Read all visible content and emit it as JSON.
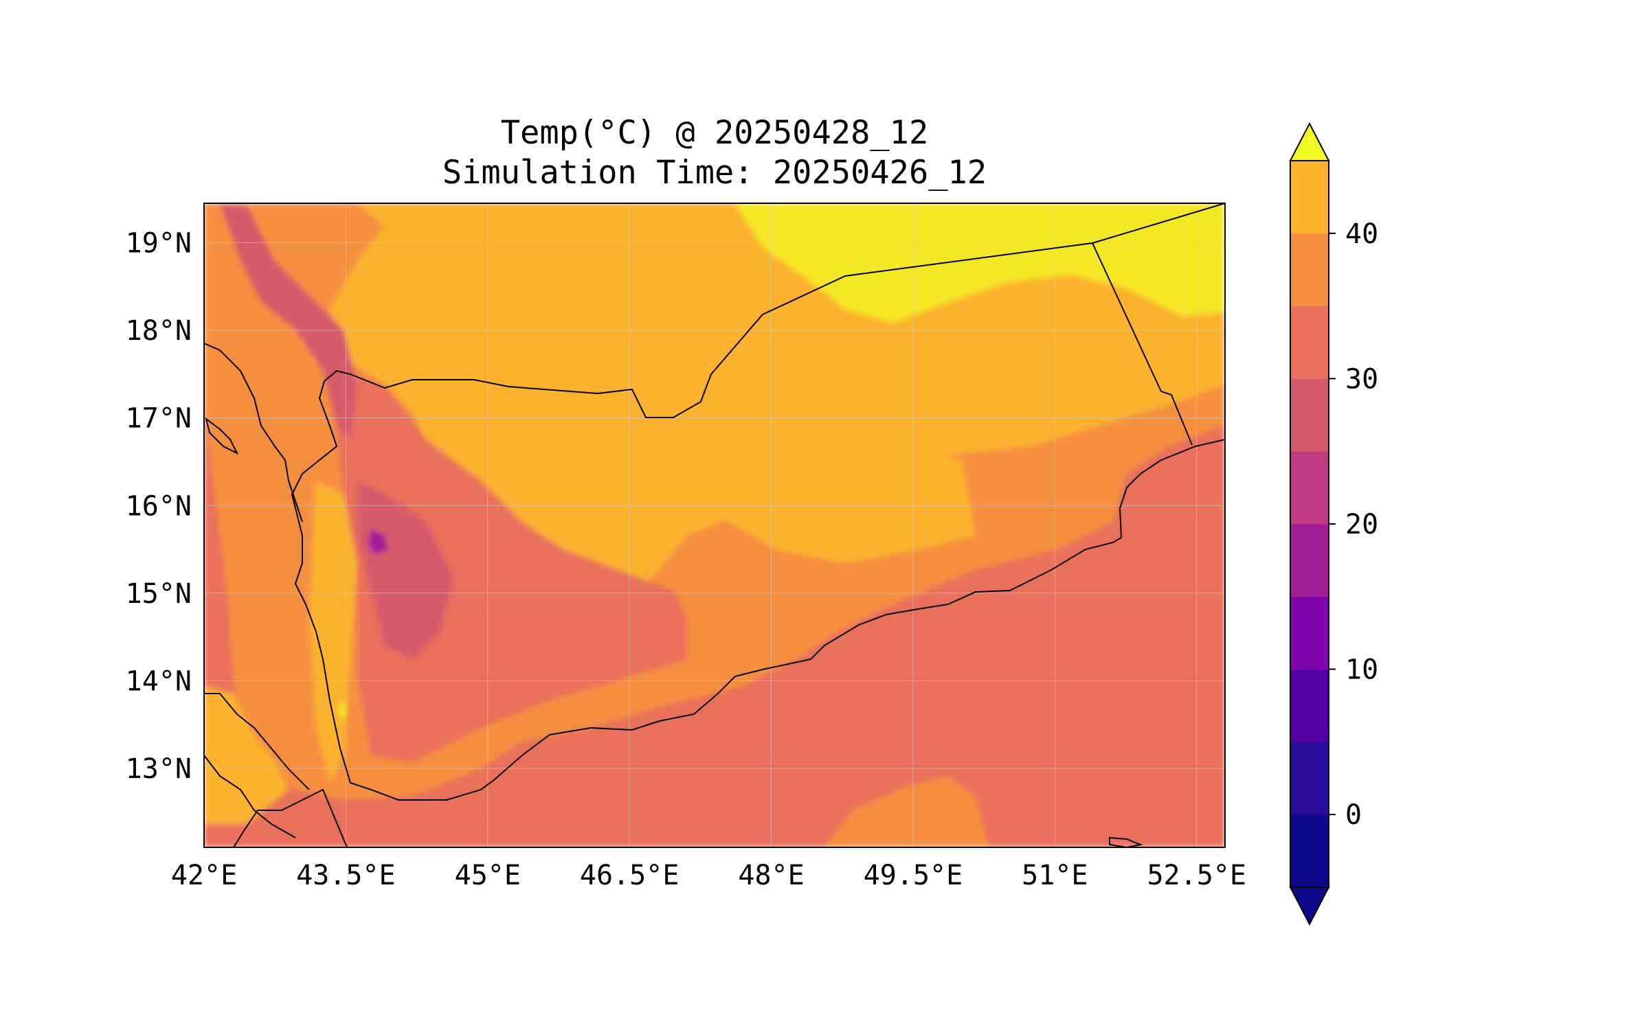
{
  "title": {
    "line1": "Temp(°C) @ 20250428_12",
    "line2": "Simulation Time: 20250426_12"
  },
  "map": {
    "lon_range": [
      42.0,
      52.8
    ],
    "lat_range": [
      12.1,
      19.45
    ],
    "lon_ticks": [
      {
        "value": 42.0,
        "label": "42°E"
      },
      {
        "value": 43.5,
        "label": "43.5°E"
      },
      {
        "value": 45.0,
        "label": "45°E"
      },
      {
        "value": 46.5,
        "label": "46.5°E"
      },
      {
        "value": 48.0,
        "label": "48°E"
      },
      {
        "value": 49.5,
        "label": "49.5°E"
      },
      {
        "value": 51.0,
        "label": "51°E"
      },
      {
        "value": 52.5,
        "label": "52.5°E"
      }
    ],
    "lat_ticks": [
      {
        "value": 19,
        "label": "19°N"
      },
      {
        "value": 18,
        "label": "18°N"
      },
      {
        "value": 17,
        "label": "17°N"
      },
      {
        "value": 16,
        "label": "16°N"
      },
      {
        "value": 15,
        "label": "15°N"
      },
      {
        "value": 14,
        "label": "14°N"
      },
      {
        "value": 13,
        "label": "13°N"
      }
    ],
    "grid": true
  },
  "colorbar": {
    "levels": [
      -5,
      0,
      5,
      10,
      15,
      20,
      25,
      30,
      35,
      40,
      45
    ],
    "colors": [
      "#0d0887",
      "#280b98",
      "#5302a3",
      "#7e03a8",
      "#a21d9a",
      "#c13b82",
      "#d55a6b",
      "#e9705a",
      "#f48f3f",
      "#fcb22d",
      "#f4e826"
    ],
    "under_color": "#0d0887",
    "over_color": "#f0f921",
    "extend": "both",
    "ticks": [
      {
        "value": 0,
        "label": "0"
      },
      {
        "value": 10,
        "label": "10"
      },
      {
        "value": 20,
        "label": "20"
      },
      {
        "value": 30,
        "label": "30"
      },
      {
        "value": 40,
        "label": "40"
      }
    ]
  }
}
